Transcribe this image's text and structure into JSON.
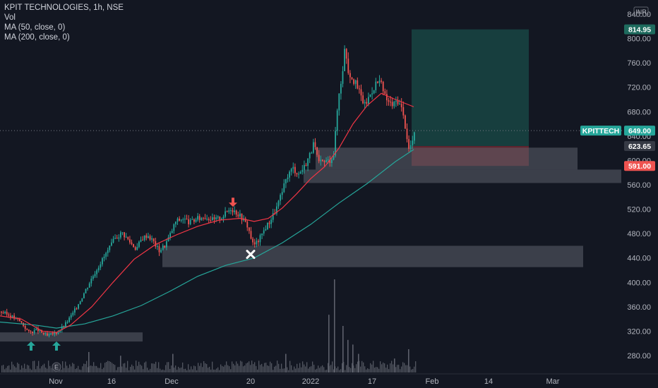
{
  "legend": {
    "title": "KPIT TECHNOLOGIES, 1h, NSE",
    "vol": "Vol",
    "ma50": "MA (50, close, 0)",
    "ma200": "MA (200, close, 0)"
  },
  "currency": "INR",
  "colors": {
    "background": "#131722",
    "up": "#26a69a",
    "down": "#ef5350",
    "ma50": "#f23645",
    "ma200": "#26a69a",
    "zone": "#5d606b",
    "target_fill": "#1b5e55",
    "stop_fill": "#7a2a33",
    "axis_text": "#b2b5be",
    "volume": "#5d606b"
  },
  "chart_data": {
    "type": "candlestick",
    "symbol": "KPITTECH",
    "timeframe": "1h",
    "exchange": "NSE",
    "y_axis": {
      "ticks": [
        280,
        320,
        360,
        400,
        440,
        480,
        520,
        560,
        600,
        640,
        680,
        720,
        760,
        800,
        840
      ],
      "tick_labels": [
        "280.00",
        "320.00",
        "360.00",
        "400.00",
        "440.00",
        "480.00",
        "520.00",
        "560.00",
        "600.00",
        "640.00",
        "680.00",
        "720.00",
        "760.00",
        "800.00",
        "840.00"
      ],
      "range": [
        270,
        850
      ]
    },
    "x_axis": {
      "labels": [
        "Nov",
        "16",
        "Dec",
        "20",
        "2022",
        "17",
        "Feb",
        "14",
        "Mar"
      ],
      "label_slots": [
        79,
        158,
        243,
        355,
        440,
        527,
        612,
        692,
        783
      ]
    },
    "price_labels": [
      {
        "text": "814.95",
        "value": 814.95,
        "style": "target"
      },
      {
        "text": "KPITTECH",
        "value": 649,
        "style": "symbol"
      },
      {
        "text": "649.00",
        "value": 649,
        "style": "last"
      },
      {
        "text": "623.65",
        "value": 623.65,
        "style": "entry"
      },
      {
        "text": "591.00",
        "value": 591,
        "style": "stop"
      }
    ],
    "last_price": 649.0,
    "long_position": {
      "entry": 623.65,
      "target": 814.95,
      "stop": 591.0
    },
    "ohlc_anchors": [
      [
        0,
        352
      ],
      [
        14,
        345
      ],
      [
        28,
        336
      ],
      [
        40,
        318
      ],
      [
        52,
        322
      ],
      [
        66,
        312
      ],
      [
        80,
        318
      ],
      [
        92,
        332
      ],
      [
        104,
        352
      ],
      [
        116,
        378
      ],
      [
        128,
        405
      ],
      [
        140,
        430
      ],
      [
        152,
        452
      ],
      [
        162,
        472
      ],
      [
        172,
        482
      ],
      [
        182,
        468
      ],
      [
        192,
        455
      ],
      [
        200,
        472
      ],
      [
        208,
        478
      ],
      [
        216,
        468
      ],
      [
        224,
        452
      ],
      [
        232,
        460
      ],
      [
        240,
        478
      ],
      [
        248,
        500
      ],
      [
        258,
        505
      ],
      [
        268,
        498
      ],
      [
        278,
        504
      ],
      [
        290,
        508
      ],
      [
        302,
        502
      ],
      [
        314,
        508
      ],
      [
        326,
        522
      ],
      [
        334,
        515
      ],
      [
        342,
        506
      ],
      [
        350,
        492
      ],
      [
        358,
        460
      ],
      [
        366,
        470
      ],
      [
        374,
        488
      ],
      [
        382,
        502
      ],
      [
        390,
        520
      ],
      [
        398,
        545
      ],
      [
        406,
        575
      ],
      [
        414,
        588
      ],
      [
        422,
        578
      ],
      [
        430,
        590
      ],
      [
        438,
        610
      ],
      [
        444,
        628
      ],
      [
        450,
        595
      ],
      [
        458,
        598
      ],
      [
        466,
        600
      ],
      [
        472,
        612
      ],
      [
        478,
        700
      ],
      [
        484,
        745
      ],
      [
        488,
        790
      ],
      [
        492,
        748
      ],
      [
        500,
        732
      ],
      [
        508,
        712
      ],
      [
        516,
        690
      ],
      [
        524,
        710
      ],
      [
        532,
        728
      ],
      [
        538,
        728
      ],
      [
        544,
        705
      ],
      [
        550,
        695
      ],
      [
        556,
        690
      ],
      [
        562,
        700
      ],
      [
        568,
        685
      ],
      [
        574,
        652
      ],
      [
        578,
        618
      ],
      [
        582,
        628
      ],
      [
        588,
        648
      ]
    ],
    "ma50_points": [
      [
        0,
        345
      ],
      [
        30,
        340
      ],
      [
        60,
        320
      ],
      [
        80,
        318
      ],
      [
        100,
        330
      ],
      [
        130,
        360
      ],
      [
        160,
        400
      ],
      [
        190,
        438
      ],
      [
        220,
        462
      ],
      [
        250,
        478
      ],
      [
        280,
        492
      ],
      [
        310,
        502
      ],
      [
        340,
        505
      ],
      [
        360,
        500
      ],
      [
        380,
        505
      ],
      [
        400,
        522
      ],
      [
        420,
        545
      ],
      [
        440,
        570
      ],
      [
        460,
        590
      ],
      [
        480,
        620
      ],
      [
        500,
        660
      ],
      [
        520,
        690
      ],
      [
        540,
        710
      ],
      [
        560,
        700
      ],
      [
        586,
        688
      ]
    ],
    "ma200_points": [
      [
        0,
        335
      ],
      [
        50,
        330
      ],
      [
        80,
        325
      ],
      [
        120,
        332
      ],
      [
        160,
        345
      ],
      [
        200,
        362
      ],
      [
        240,
        385
      ],
      [
        280,
        410
      ],
      [
        320,
        428
      ],
      [
        360,
        440
      ],
      [
        400,
        465
      ],
      [
        440,
        495
      ],
      [
        480,
        530
      ],
      [
        520,
        562
      ],
      [
        560,
        598
      ],
      [
        586,
        618
      ]
    ],
    "zones": [
      {
        "x_start": 0,
        "x_end": 202,
        "low": 303,
        "high": 318
      },
      {
        "x_start": 230,
        "x_end": 826,
        "low": 425,
        "high": 460
      },
      {
        "x_start": 430,
        "x_end": 880,
        "low": 563,
        "high": 585
      },
      {
        "x_start": 447,
        "x_end": 818,
        "low": 585,
        "high": 621
      }
    ],
    "markers": [
      {
        "type": "arrow-up",
        "slot": 44,
        "value": 295
      },
      {
        "type": "arrow-up",
        "slot": 80,
        "value": 295
      },
      {
        "type": "arrow-down",
        "slot": 330,
        "value": 532
      },
      {
        "type": "x-mark",
        "slot": 355,
        "value": 446
      }
    ],
    "volume_spikes": [
      {
        "slot": 465,
        "value": 0.62
      },
      {
        "slot": 473,
        "value": 1.0
      },
      {
        "slot": 485,
        "value": 0.5
      },
      {
        "slot": 492,
        "value": 0.35
      },
      {
        "slot": 499,
        "value": 0.3
      },
      {
        "slot": 507,
        "value": 0.2
      },
      {
        "slot": 125,
        "value": 0.22
      },
      {
        "slot": 170,
        "value": 0.18
      },
      {
        "slot": 244,
        "value": 0.2
      },
      {
        "slot": 404,
        "value": 0.2
      },
      {
        "slot": 558,
        "value": 0.15
      },
      {
        "slot": 578,
        "value": 0.25
      }
    ],
    "volume_extent_slot": 588
  }
}
